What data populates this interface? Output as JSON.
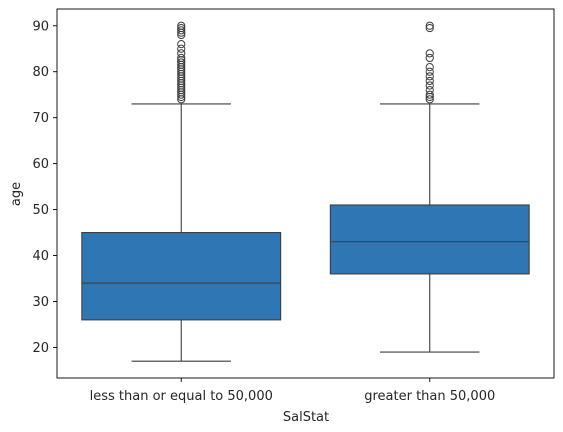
{
  "chart_data": {
    "type": "box",
    "xlabel": "SalStat",
    "ylabel": "age",
    "ylim": [
      13.35,
      93.65
    ],
    "yticks": [
      20,
      30,
      40,
      50,
      60,
      70,
      80,
      90
    ],
    "grid": false,
    "legend": "none",
    "box_color": "#2e77b4",
    "line_color": "#3d3d3d",
    "categories": [
      "less than or equal to 50,000",
      "greater than 50,000"
    ],
    "boxes": [
      {
        "category": "less than or equal to 50,000",
        "whisker_low": 17,
        "q1": 26,
        "median": 34,
        "q3": 45,
        "whisker_high": 73,
        "outliers": [
          74,
          74.5,
          75,
          75.5,
          76,
          76.5,
          77,
          77.5,
          78,
          78.5,
          79,
          79.5,
          80,
          80.5,
          81,
          81.5,
          82,
          82.5,
          83,
          84,
          85,
          86,
          88,
          88.5,
          89,
          89.5,
          90
        ]
      },
      {
        "category": "greater than 50,000",
        "whisker_low": 19,
        "q1": 36,
        "median": 43,
        "q3": 51,
        "whisker_high": 73,
        "outliers": [
          74,
          74.5,
          75,
          76,
          77,
          78,
          79,
          80,
          81,
          83,
          84,
          89.5,
          90
        ]
      }
    ]
  }
}
